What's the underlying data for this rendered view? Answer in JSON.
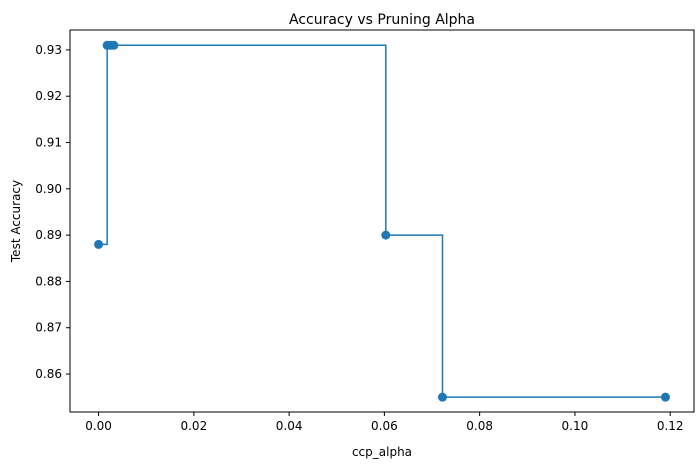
{
  "chart_data": {
    "type": "line",
    "title": "Accuracy vs Pruning Alpha",
    "xlabel": "ccp_alpha",
    "ylabel": "Test Accuracy",
    "line_style": "step-post",
    "markers": true,
    "color": "#1f77b4",
    "grid": false,
    "xlim": [
      -0.006,
      0.125
    ],
    "ylim": [
      0.8518,
      0.9343
    ],
    "xticks": [
      0.0,
      0.02,
      0.04,
      0.06,
      0.08,
      0.1,
      0.12
    ],
    "xtick_labels": [
      "0.00",
      "0.02",
      "0.04",
      "0.06",
      "0.08",
      "0.10",
      "0.12"
    ],
    "yticks": [
      0.86,
      0.87,
      0.88,
      0.89,
      0.9,
      0.91,
      0.92,
      0.93
    ],
    "ytick_labels": [
      "0.86",
      "0.87",
      "0.88",
      "0.89",
      "0.90",
      "0.91",
      "0.92",
      "0.93"
    ],
    "series": [
      {
        "x": [
          0.0,
          0.0018,
          0.0025,
          0.0032,
          0.0603,
          0.0722,
          0.119
        ],
        "y": [
          0.888,
          0.931,
          0.931,
          0.931,
          0.89,
          0.855,
          0.855
        ]
      }
    ]
  }
}
